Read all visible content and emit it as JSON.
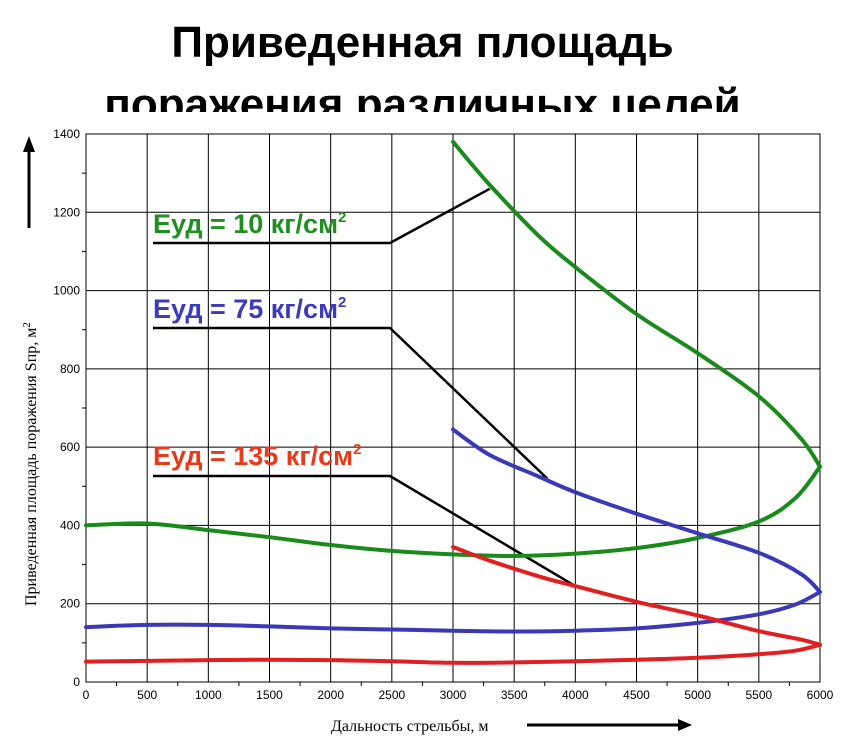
{
  "title": {
    "line1": "Приведенная площадь",
    "line2": "поражения различных целей"
  },
  "chart_data": {
    "type": "line",
    "xlabel": "Дальность стрельбы, м",
    "ylabel": "Приведенная площадь поражения Sпр, м",
    "ylabel_sup": "2",
    "xlim": [
      0,
      6000
    ],
    "ylim": [
      0,
      1400
    ],
    "x_ticks": [
      0,
      500,
      1000,
      1500,
      2000,
      2500,
      3000,
      3500,
      4000,
      4500,
      5000,
      5500,
      6000
    ],
    "y_ticks": [
      0,
      200,
      400,
      600,
      800,
      1000,
      1200,
      1400
    ],
    "grid": true,
    "series": [
      {
        "name": "Еуд = 10 кг/см",
        "name_sup": "2",
        "color": "#1a8a1a",
        "label_color": "#1f8f1f",
        "lower_branch": [
          [
            0,
            400
          ],
          [
            500,
            405
          ],
          [
            1000,
            388
          ],
          [
            1500,
            370
          ],
          [
            2000,
            350
          ],
          [
            2500,
            335
          ],
          [
            3000,
            326
          ],
          [
            3500,
            322
          ],
          [
            4000,
            328
          ],
          [
            4500,
            342
          ],
          [
            5000,
            368
          ],
          [
            5500,
            410
          ],
          [
            5800,
            470
          ],
          [
            6000,
            550
          ]
        ],
        "upper_branch": [
          [
            3000,
            1380
          ],
          [
            3300,
            1270
          ],
          [
            3700,
            1140
          ],
          [
            4000,
            1060
          ],
          [
            4500,
            940
          ],
          [
            5000,
            840
          ],
          [
            5500,
            730
          ],
          [
            5850,
            620
          ],
          [
            6000,
            550
          ]
        ],
        "pointer": [
          3300,
          1260
        ]
      },
      {
        "name": "Еуд = 75 кг/см",
        "name_sup": "2",
        "color": "#3a3ab8",
        "label_color": "#3b3bbd",
        "lower_branch": [
          [
            0,
            140
          ],
          [
            500,
            146
          ],
          [
            1000,
            146
          ],
          [
            1500,
            142
          ],
          [
            2000,
            137
          ],
          [
            2500,
            134
          ],
          [
            3000,
            131
          ],
          [
            3500,
            129
          ],
          [
            4000,
            131
          ],
          [
            4500,
            137
          ],
          [
            5000,
            151
          ],
          [
            5500,
            173
          ],
          [
            5800,
            198
          ],
          [
            6000,
            230
          ]
        ],
        "upper_branch": [
          [
            3000,
            645
          ],
          [
            3300,
            580
          ],
          [
            3700,
            525
          ],
          [
            4000,
            485
          ],
          [
            4500,
            430
          ],
          [
            5000,
            380
          ],
          [
            5500,
            330
          ],
          [
            5850,
            275
          ],
          [
            6000,
            230
          ]
        ],
        "pointer": [
          3770,
          520
        ]
      },
      {
        "name": "Еуд = 135 кг/см",
        "name_sup": "2",
        "color": "#e02020",
        "label_color": "#e83a1a",
        "lower_branch": [
          [
            0,
            52
          ],
          [
            500,
            54
          ],
          [
            1000,
            56
          ],
          [
            1500,
            57
          ],
          [
            2000,
            56
          ],
          [
            2500,
            53
          ],
          [
            3000,
            49
          ],
          [
            3500,
            50
          ],
          [
            4000,
            53
          ],
          [
            4500,
            57
          ],
          [
            5000,
            62
          ],
          [
            5500,
            71
          ],
          [
            5800,
            80
          ],
          [
            6000,
            95
          ]
        ],
        "upper_branch": [
          [
            3000,
            345
          ],
          [
            3300,
            310
          ],
          [
            3700,
            270
          ],
          [
            4000,
            245
          ],
          [
            4500,
            205
          ],
          [
            5000,
            170
          ],
          [
            5500,
            130
          ],
          [
            5850,
            108
          ],
          [
            6000,
            95
          ]
        ],
        "pointer": [
          4000,
          245
        ]
      }
    ]
  }
}
